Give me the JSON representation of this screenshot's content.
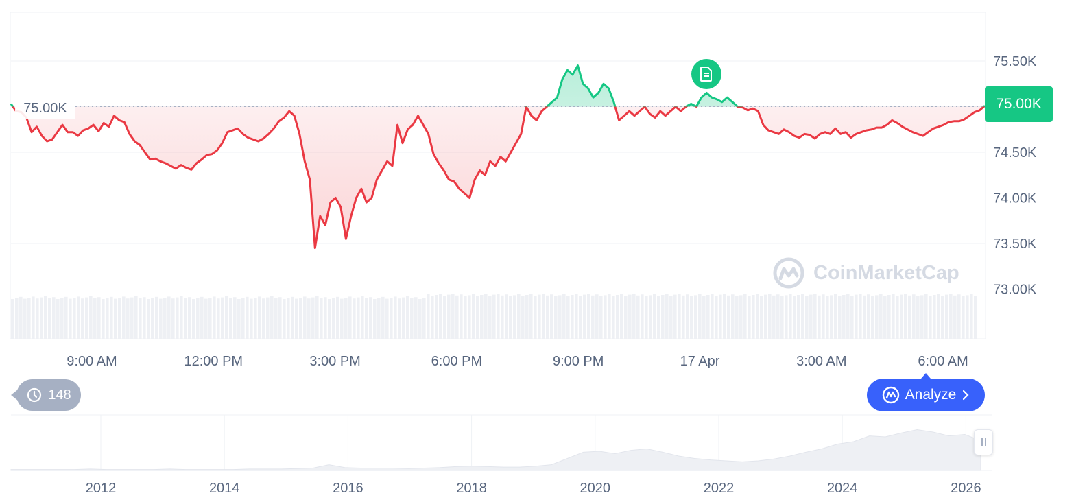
{
  "chart_data": {
    "type": "line",
    "reference_price_label": "75.00K",
    "reference_value": 75000,
    "current_price_label": "75.00K",
    "y_ticks": [
      {
        "value": 75500,
        "label": "75.50K"
      },
      {
        "value": 75000,
        "label": "75.00K"
      },
      {
        "value": 74500,
        "label": "74.50K"
      },
      {
        "value": 74000,
        "label": "74.00K"
      },
      {
        "value": 73500,
        "label": "73.50K"
      },
      {
        "value": 73000,
        "label": "73.00K"
      }
    ],
    "x_ticks": [
      "9:00 AM",
      "12:00 PM",
      "3:00 PM",
      "6:00 PM",
      "9:00 PM",
      "17 Apr",
      "3:00 AM",
      "6:00 AM"
    ],
    "series": [
      {
        "values": [
          75030,
          74950,
          74940,
          74880,
          74720,
          74780,
          74680,
          74620,
          74640,
          74720,
          74800,
          74720,
          74720,
          74680,
          74740,
          74760,
          74800,
          74730,
          74820,
          74780,
          74900,
          74850,
          74830,
          74700,
          74620,
          74580,
          74500,
          74420,
          74430,
          74400,
          74380,
          74350,
          74320,
          74360,
          74330,
          74310,
          74380,
          74420,
          74470,
          74480,
          74520,
          74600,
          74720,
          74740,
          74760,
          74700,
          74660,
          74640,
          74620,
          74650,
          74700,
          74760,
          74840,
          74880,
          74950,
          74900,
          74700,
          74400,
          74200,
          73450,
          73800,
          73700,
          73950,
          74000,
          73900,
          73550,
          73800,
          74000,
          74100,
          73950,
          74000,
          74200,
          74300,
          74400,
          74350,
          74800,
          74600,
          74750,
          74800,
          74900,
          74800,
          74700,
          74480,
          74380,
          74300,
          74200,
          74180,
          74100,
          74050,
          74000,
          74200,
          74300,
          74250,
          74400,
          74350,
          74450,
          74400,
          74500,
          74600,
          74700,
          75000,
          74900,
          74850,
          74950,
          75000,
          75050,
          75100,
          75300,
          75400,
          75350,
          75450,
          75250,
          75200,
          75100,
          75150,
          75250,
          75200,
          75050,
          74850,
          74900,
          74950,
          74900,
          74950,
          75000,
          74920,
          74880,
          74950,
          74900,
          74950,
          75000,
          74950,
          75000,
          75030,
          75000,
          75100,
          75150,
          75100,
          75080,
          75050,
          75100,
          75050,
          75000,
          74990,
          74960,
          74980,
          74950,
          74800,
          74740,
          74720,
          74700,
          74750,
          74720,
          74680,
          74660,
          74700,
          74690,
          74650,
          74700,
          74720,
          74700,
          74760,
          74700,
          74720,
          74660,
          74700,
          74720,
          74740,
          74750,
          74770,
          74770,
          74800,
          74850,
          74820,
          74780,
          74750,
          74720,
          74700,
          74680,
          74720,
          74760,
          74780,
          74800,
          74830,
          74840,
          74840,
          74860,
          74900,
          74940,
          74960,
          75010
        ]
      }
    ],
    "y_range": [
      73000,
      76000
    ],
    "volume_bars": "present",
    "grid": true
  },
  "overview": {
    "x_ticks": [
      "2012",
      "2014",
      "2016",
      "2018",
      "2020",
      "2022",
      "2024",
      "2026"
    ],
    "values": [
      0.02,
      0.02,
      0.02,
      0.02,
      0.02,
      0.03,
      0.02,
      0.02,
      0.02,
      0.02,
      0.03,
      0.02,
      0.02,
      0.02,
      0.02,
      0.03,
      0.03,
      0.03,
      0.04,
      0.05,
      0.12,
      0.06,
      0.05,
      0.05,
      0.05,
      0.04,
      0.05,
      0.06,
      0.08,
      0.09,
      0.08,
      0.07,
      0.07,
      0.09,
      0.12,
      0.25,
      0.38,
      0.4,
      0.35,
      0.42,
      0.45,
      0.38,
      0.3,
      0.25,
      0.22,
      0.2,
      0.18,
      0.2,
      0.24,
      0.3,
      0.38,
      0.45,
      0.55,
      0.6,
      0.72,
      0.7,
      0.78,
      0.85,
      0.8,
      0.72,
      0.75,
      0.62
    ]
  },
  "ui": {
    "history_count": "148",
    "analyze_label": "Analyze",
    "watermark_text": "CoinMarketCap"
  },
  "colors": {
    "up": "#16c784",
    "down": "#ea3943",
    "accent": "#3861fb",
    "badge": "#a6b0c3"
  }
}
